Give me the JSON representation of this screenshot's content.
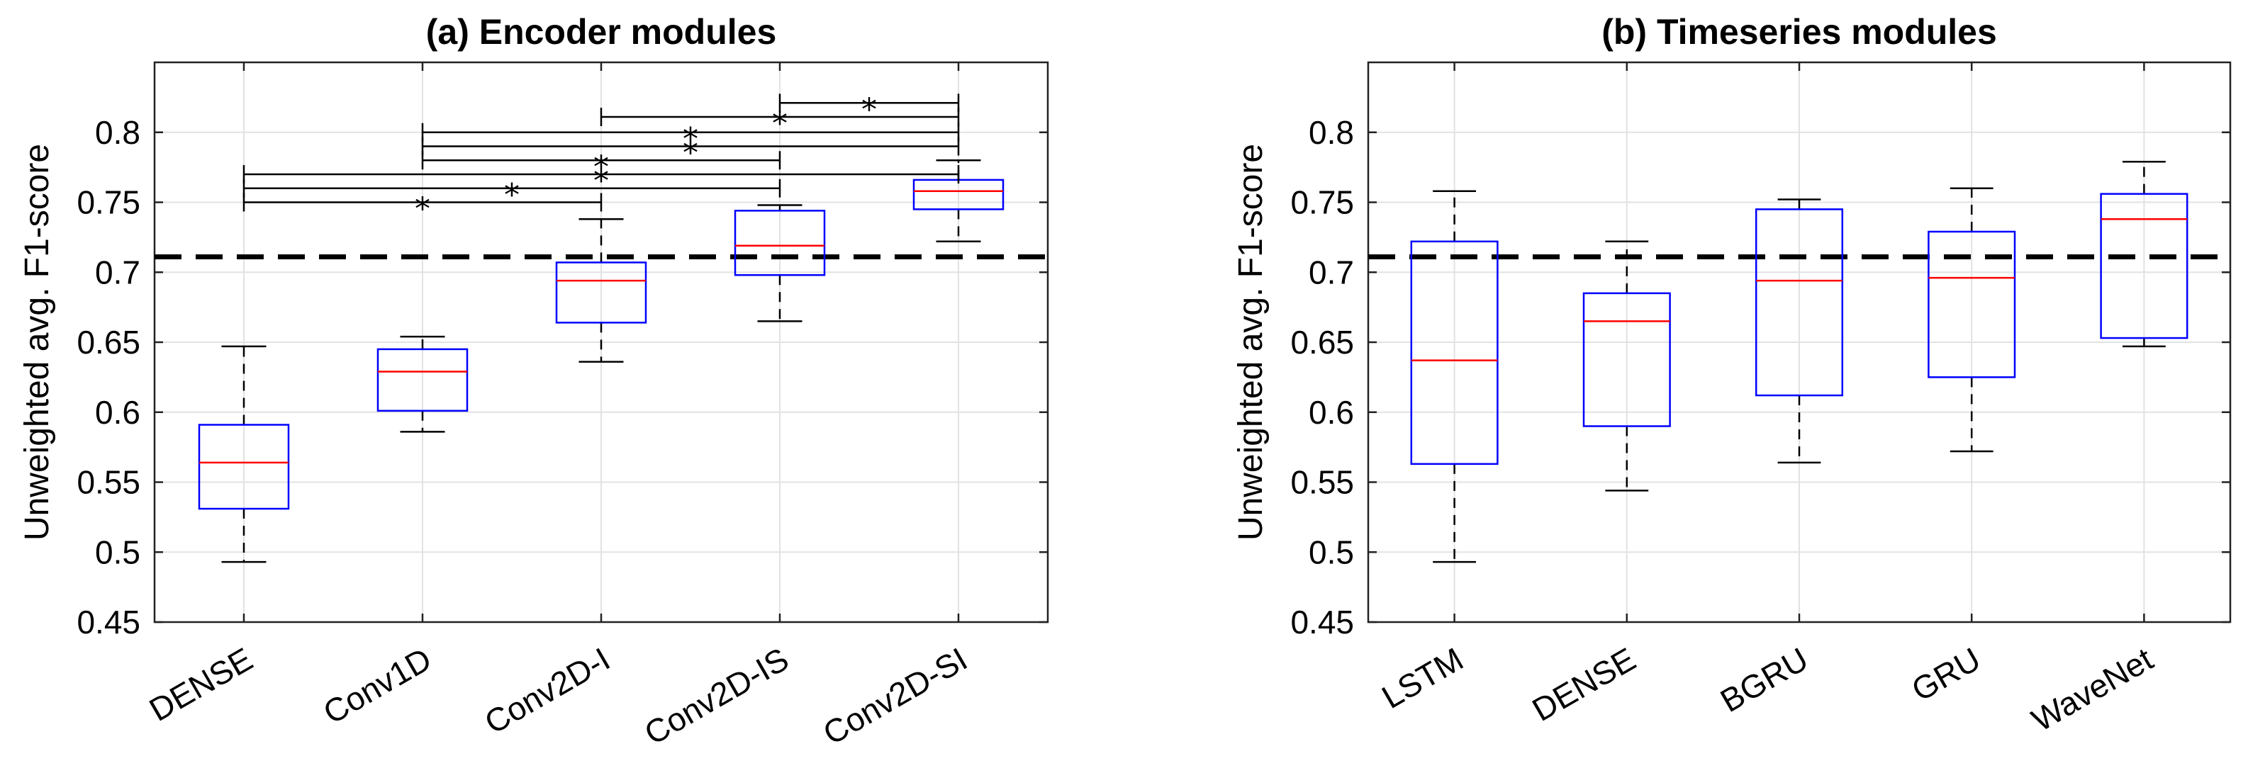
{
  "chart_data": [
    {
      "type": "box",
      "title": "(a) Encoder modules",
      "ylabel": "Unweighted avg. F1-score",
      "ylim": [
        0.45,
        0.85
      ],
      "yticks": [
        0.45,
        0.5,
        0.55,
        0.6,
        0.65,
        0.7,
        0.75,
        0.8
      ],
      "ytick_labels": [
        "0.45",
        "0.5",
        "0.55",
        "0.6",
        "0.65",
        "0.7",
        "0.75",
        "0.8"
      ],
      "categories": [
        "DENSE",
        "Conv1D",
        "Conv2D-I",
        "Conv2D-IS",
        "Conv2D-SI"
      ],
      "boxes": [
        {
          "min": 0.493,
          "q1": 0.531,
          "median": 0.564,
          "q3": 0.591,
          "max": 0.647
        },
        {
          "min": 0.586,
          "q1": 0.601,
          "median": 0.629,
          "q3": 0.645,
          "max": 0.654
        },
        {
          "min": 0.636,
          "q1": 0.664,
          "median": 0.694,
          "q3": 0.707,
          "max": 0.738
        },
        {
          "min": 0.665,
          "q1": 0.698,
          "median": 0.719,
          "q3": 0.744,
          "max": 0.748
        },
        {
          "min": 0.722,
          "q1": 0.745,
          "median": 0.758,
          "q3": 0.766,
          "max": 0.78
        }
      ],
      "reference_line": 0.711,
      "significance": [
        {
          "from": 0,
          "to": 2,
          "y": 0.75,
          "marker": "*"
        },
        {
          "from": 0,
          "to": 3,
          "y": 0.76,
          "marker": "*"
        },
        {
          "from": 0,
          "to": 4,
          "y": 0.77,
          "marker": "*"
        },
        {
          "from": 1,
          "to": 3,
          "y": 0.78,
          "marker": "*"
        },
        {
          "from": 1,
          "to": 4,
          "y": 0.79,
          "marker": "*"
        },
        {
          "from": 1,
          "to": 4,
          "y": 0.8,
          "marker": "*"
        },
        {
          "from": 2,
          "to": 4,
          "y": 0.811,
          "marker": "*"
        },
        {
          "from": 3,
          "to": 4,
          "y": 0.821,
          "marker": "*"
        }
      ]
    },
    {
      "type": "box",
      "title": "(b) Timeseries modules",
      "ylabel": "Unweighted avg. F1-score",
      "ylim": [
        0.45,
        0.85
      ],
      "yticks": [
        0.45,
        0.5,
        0.55,
        0.6,
        0.65,
        0.7,
        0.75,
        0.8
      ],
      "ytick_labels": [
        "0.45",
        "0.5",
        "0.55",
        "0.6",
        "0.65",
        "0.7",
        "0.75",
        "0.8"
      ],
      "categories": [
        "LSTM",
        "DENSE",
        "BGRU",
        "GRU",
        "WaveNet"
      ],
      "boxes": [
        {
          "min": 0.493,
          "q1": 0.563,
          "median": 0.637,
          "q3": 0.722,
          "max": 0.758
        },
        {
          "min": 0.544,
          "q1": 0.59,
          "median": 0.665,
          "q3": 0.685,
          "max": 0.722
        },
        {
          "min": 0.564,
          "q1": 0.612,
          "median": 0.694,
          "q3": 0.745,
          "max": 0.752
        },
        {
          "min": 0.572,
          "q1": 0.625,
          "median": 0.696,
          "q3": 0.729,
          "max": 0.76
        },
        {
          "min": 0.647,
          "q1": 0.653,
          "median": 0.738,
          "q3": 0.756,
          "max": 0.779
        }
      ],
      "reference_line": 0.711,
      "significance": []
    }
  ]
}
